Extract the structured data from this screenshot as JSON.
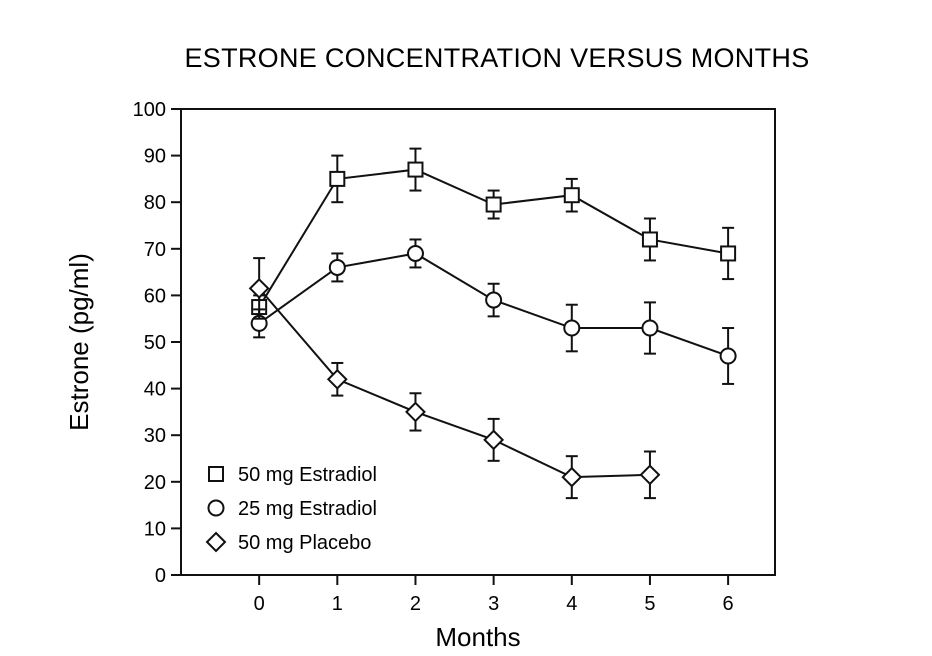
{
  "chart_data": {
    "type": "line",
    "title": "ESTRONE CONCENTRATION VERSUS MONTHS",
    "xlabel": "Months",
    "ylabel": "Estrone (pg/ml)",
    "xlim": [
      -1,
      6.6
    ],
    "ylim": [
      0,
      100
    ],
    "xticks": [
      0,
      1,
      2,
      3,
      4,
      5,
      6
    ],
    "yticks": [
      0,
      10,
      20,
      30,
      40,
      50,
      60,
      70,
      80,
      90,
      100
    ],
    "grid": false,
    "legend_position": "bottom-left",
    "series": [
      {
        "name": "50 mg Estradiol",
        "marker": "square",
        "x": [
          0,
          1,
          2,
          3,
          4,
          5,
          6
        ],
        "y": [
          57.5,
          85,
          87,
          79.5,
          81.5,
          72,
          69
        ],
        "error": [
          2.5,
          5,
          4.5,
          3,
          3.5,
          4.5,
          5.5
        ]
      },
      {
        "name": "25 mg Estradiol",
        "marker": "circle",
        "x": [
          0,
          1,
          2,
          3,
          4,
          5,
          6
        ],
        "y": [
          54,
          66,
          69,
          59,
          53,
          53,
          47
        ],
        "error": [
          3,
          3,
          3,
          3.5,
          5,
          5.5,
          6
        ]
      },
      {
        "name": "50 mg Placebo",
        "marker": "diamond",
        "x": [
          0,
          1,
          2,
          3,
          4,
          5
        ],
        "y": [
          61.5,
          42,
          35,
          29,
          21,
          21.5
        ],
        "error": [
          6.5,
          3.5,
          4,
          4.5,
          4.5,
          5
        ]
      }
    ]
  }
}
